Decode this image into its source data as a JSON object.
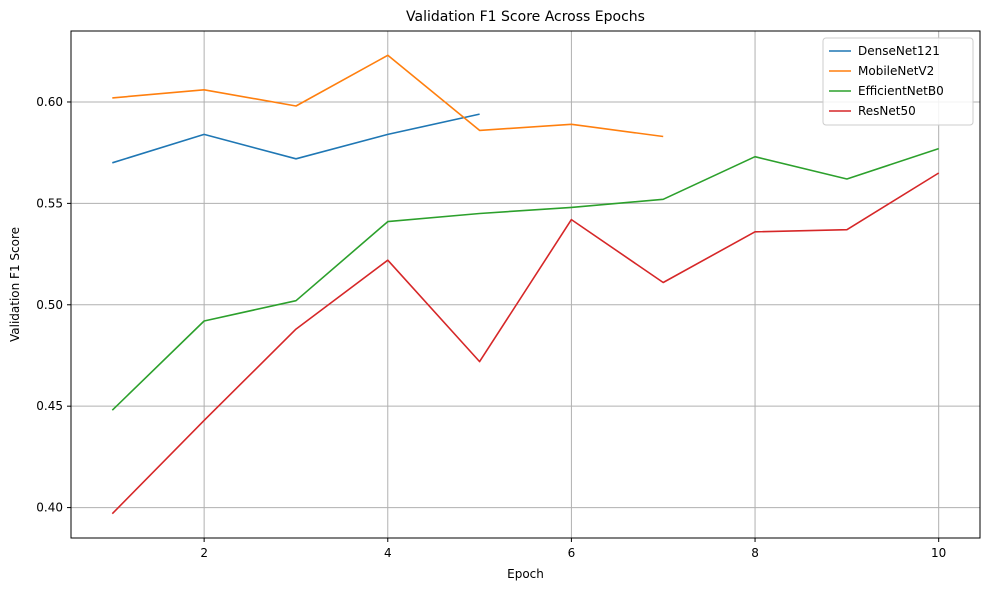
{
  "chart_data": {
    "type": "line",
    "title": "Validation F1 Score Across Epochs",
    "xlabel": "Epoch",
    "ylabel": "Validation F1 Score",
    "xlim": [
      0.55,
      10.45
    ],
    "ylim": [
      0.385,
      0.635
    ],
    "xticks": [
      2,
      4,
      6,
      8,
      10
    ],
    "xtick_labels": [
      "2",
      "4",
      "6",
      "8",
      "10"
    ],
    "yticks": [
      0.4,
      0.45,
      0.5,
      0.55,
      0.6
    ],
    "ytick_labels": [
      "0.40",
      "0.45",
      "0.50",
      "0.55",
      "0.60"
    ],
    "grid": true,
    "legend_position": "top-right",
    "series": [
      {
        "name": "DenseNet121",
        "color": "#1f77b4",
        "x": [
          1,
          2,
          3,
          4,
          5
        ],
        "values": [
          0.57,
          0.584,
          0.572,
          0.584,
          0.594
        ]
      },
      {
        "name": "MobileNetV2",
        "color": "#ff7f0e",
        "x": [
          1,
          2,
          3,
          4,
          5,
          6,
          7
        ],
        "values": [
          0.602,
          0.606,
          0.598,
          0.623,
          0.586,
          0.589,
          0.583
        ]
      },
      {
        "name": "EfficientNetB0",
        "color": "#2ca02c",
        "x": [
          1,
          2,
          3,
          4,
          5,
          6,
          7,
          8,
          9,
          10
        ],
        "values": [
          0.448,
          0.492,
          0.502,
          0.541,
          0.545,
          0.548,
          0.552,
          0.573,
          0.562,
          0.577
        ]
      },
      {
        "name": "ResNet50",
        "color": "#d62728",
        "x": [
          1,
          2,
          3,
          4,
          5,
          6,
          7,
          8,
          9,
          10
        ],
        "values": [
          0.397,
          0.443,
          0.488,
          0.522,
          0.472,
          0.542,
          0.511,
          0.536,
          0.537,
          0.565
        ]
      }
    ]
  }
}
